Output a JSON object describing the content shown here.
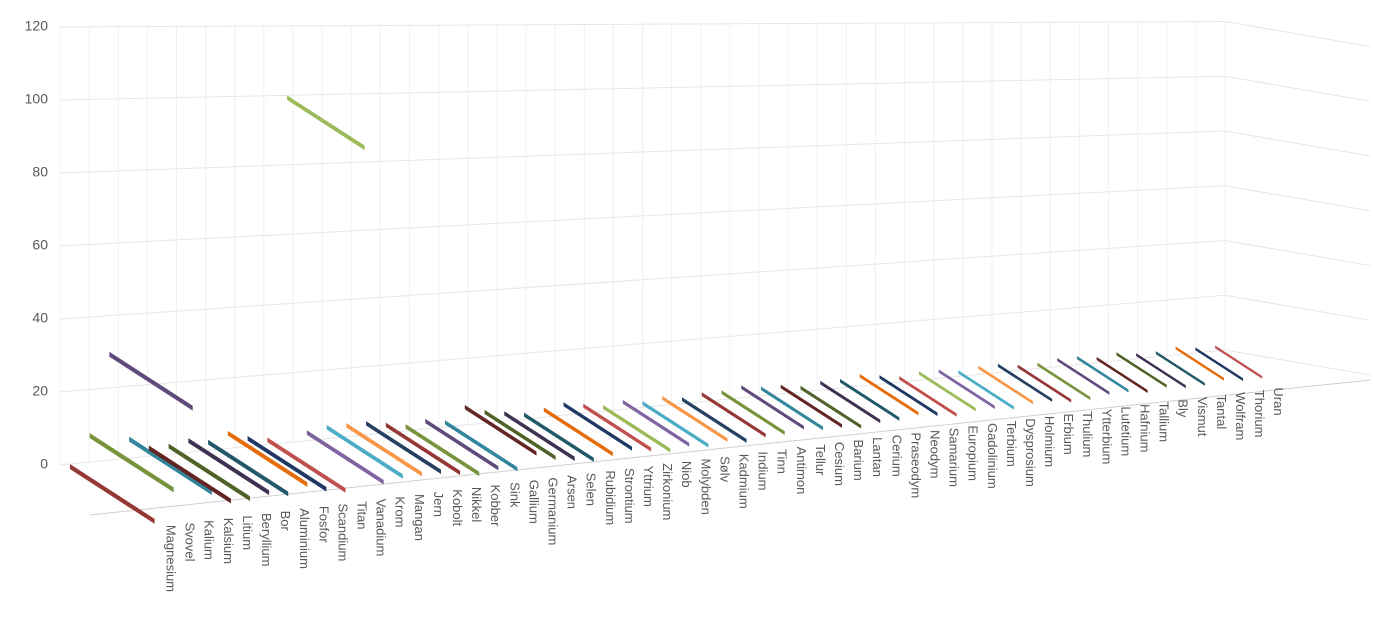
{
  "chart_data": {
    "type": "line3d",
    "categories": [
      "Magnesium",
      "Svovel",
      "Kalium",
      "Kalsium",
      "Litium",
      "Beryllium",
      "Bor",
      "Aluminium",
      "Fosfor",
      "Scandium",
      "Titan",
      "Vanadium",
      "Krom",
      "Mangan",
      "Jern",
      "Kobolt",
      "Nikkel",
      "Kobber",
      "Sink",
      "Gallium",
      "Germanium",
      "Arsen",
      "Selen",
      "Rubidium",
      "Strontium",
      "Yttrium",
      "Zirkonium",
      "Niob",
      "Molybden",
      "Sølv",
      "Kadmium",
      "Indium",
      "Tinn",
      "Antimon",
      "Tellur",
      "Cesium",
      "Barium",
      "Lantan",
      "Cerium",
      "Praseodym",
      "Neodym",
      "Samarium",
      "Europium",
      "Gadolinium",
      "Terbium",
      "Dysprosium",
      "Holmium",
      "Erbium",
      "Thulium",
      "Ytterbium",
      "Lutetium",
      "Hafnium",
      "Tallium",
      "Bly",
      "Vismut",
      "Tantal",
      "Wolfram",
      "Thorium",
      "Uran"
    ],
    "values": [
      0,
      8,
      30,
      6,
      3,
      3,
      4,
      3,
      5,
      3,
      2,
      100,
      3,
      4,
      4,
      4,
      3,
      2,
      3,
      2,
      6,
      4,
      3,
      2,
      3,
      4,
      3,
      2,
      3,
      2,
      3,
      2,
      3,
      3,
      4,
      3,
      3,
      2,
      3,
      3,
      4,
      3,
      2,
      3,
      3,
      2,
      3,
      3,
      2,
      2,
      3,
      3,
      2,
      3,
      2,
      2,
      3,
      2,
      2
    ],
    "colors": [
      "#953735",
      "#77933c",
      "#604a7b",
      "#31859c",
      "#632523",
      "#4f6228",
      "#3f3151",
      "#215968",
      "#e46c0a",
      "#1f3864",
      "#c0504d",
      "#9bbb59",
      "#8064a2",
      "#4bacc6",
      "#f79646",
      "#254061"
    ],
    "ylim": [
      0,
      120
    ],
    "yticks": [
      0,
      20,
      40,
      60,
      80,
      100,
      120
    ],
    "grid": true
  }
}
